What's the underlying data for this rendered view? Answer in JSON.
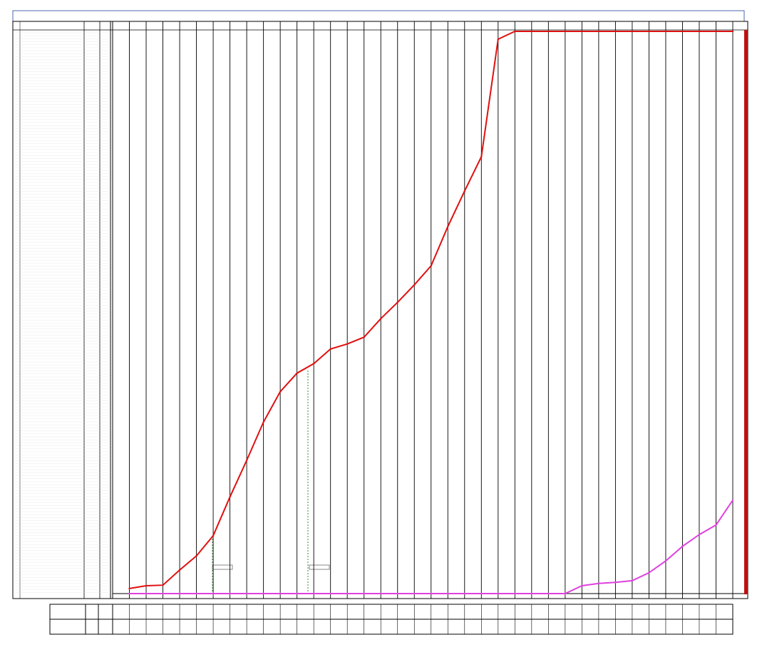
{
  "chart_data": {
    "type": "line",
    "categories": [
      null,
      null,
      null,
      null,
      null,
      null,
      null,
      null,
      null,
      null,
      null,
      null,
      null,
      null,
      null,
      null,
      null,
      null,
      null,
      null,
      null,
      null,
      null,
      null,
      null,
      null,
      null,
      null,
      null,
      null,
      null,
      null,
      null,
      null,
      null,
      null,
      null
    ],
    "series": [
      {
        "color": "#e01010",
        "values": [
          0.9,
          1.4,
          1.5,
          4.2,
          6.7,
          10.3,
          17.2,
          23.7,
          30.5,
          35.9,
          39.2,
          40.9,
          43.5,
          44.4,
          45.6,
          48.9,
          51.8,
          54.9,
          58.3,
          65.3,
          71.6,
          77.7,
          98.6,
          100,
          100,
          100,
          100,
          100,
          100,
          100,
          100,
          100,
          100,
          100,
          100,
          100,
          100
        ]
      },
      {
        "color": "#e040e0",
        "values": [
          0,
          0,
          0,
          0,
          0,
          0,
          0,
          0,
          0,
          0,
          0,
          0,
          0,
          0,
          0,
          0,
          0,
          0,
          0,
          0,
          0,
          0,
          0,
          0,
          0,
          0,
          0,
          1.4,
          1.8,
          2.0,
          2.3,
          3.7,
          5.8,
          8.4,
          10.5,
          12.2,
          16.6
        ]
      }
    ],
    "ylim": [
      0,
      100
    ]
  }
}
